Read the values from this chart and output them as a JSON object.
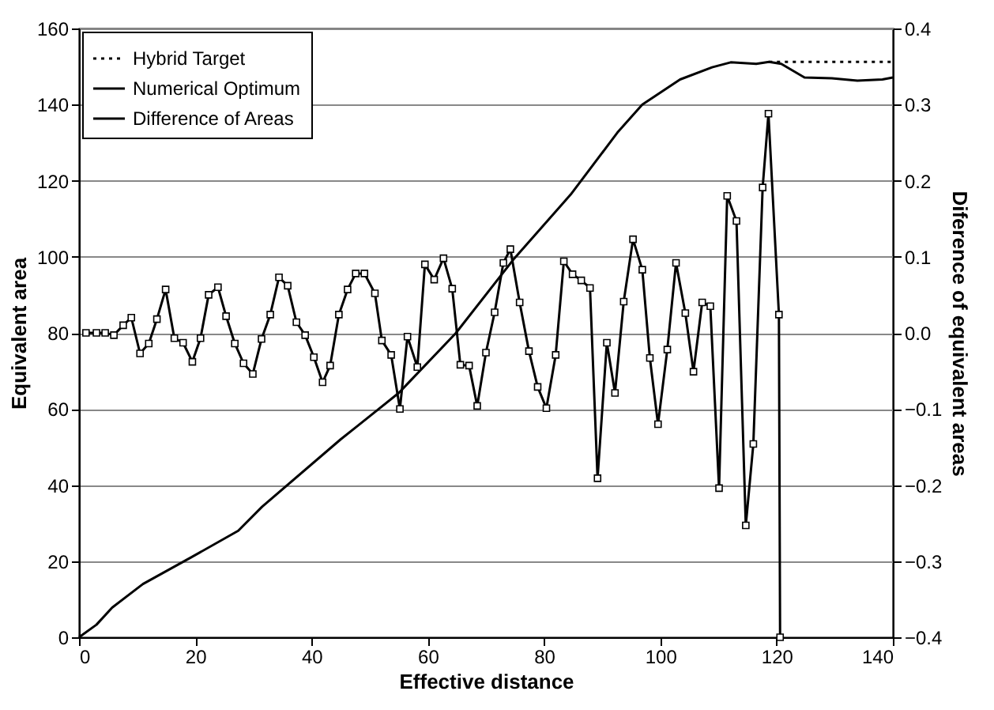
{
  "chart_data": {
    "type": "line",
    "xlabel": "Effective distance",
    "ylabel": "Equivalent area",
    "y2label": "Diference of equivalent areas",
    "xlim": [
      0,
      140
    ],
    "xticks": [
      0,
      20,
      40,
      60,
      80,
      100,
      120,
      140
    ],
    "ylim": [
      0,
      160
    ],
    "yticks": [
      0,
      20,
      40,
      60,
      80,
      100,
      120,
      140,
      160
    ],
    "y2lim": [
      -0.4,
      0.4
    ],
    "y2ticks": [
      -0.4,
      -0.3,
      -0.2,
      -0.1,
      {
        "value": 0,
        "label": "0.0"
      },
      0.1,
      0.2,
      0.3,
      0.4
    ],
    "grid": "y",
    "legend": "top left",
    "series": [
      {
        "name": "Hybrid Target",
        "color": "#000000",
        "line_style": "dotted",
        "marker": "none",
        "x": [
          118.7,
          140
        ],
        "values": [
          151.2,
          151.2
        ]
      },
      {
        "name": "Numerical Optimum",
        "color": "#000000",
        "line_style": "solid",
        "marker": "none",
        "x": [
          0,
          3,
          5.7,
          11,
          19.3,
          27.4,
          31.5,
          45,
          47.8,
          55,
          64.8,
          74.9,
          84.6,
          92.6,
          96.9,
          103.4,
          108.9,
          112.1,
          116.5,
          118.7,
          120.8,
          124.8,
          129.5,
          133.9,
          138.2,
          140
        ],
        "values": [
          0,
          3.3,
          7.8,
          14,
          21,
          28,
          34.3,
          52,
          55.4,
          64.2,
          79.9,
          99.6,
          116.4,
          132.6,
          140,
          146.6,
          149.8,
          151.1,
          150.7,
          151.2,
          150.7,
          147.1,
          146.9,
          146.3,
          146.6,
          147.1
        ]
      },
      {
        "name": "Difference of Areas",
        "color": "#000000",
        "line_style": "solid",
        "marker": "square",
        "axis": "y2",
        "x": [
          1.2,
          3.0,
          4.5,
          6.0,
          7.6,
          9.0,
          10.5,
          12.0,
          13.4,
          14.9,
          16.4,
          17.9,
          19.5,
          20.9,
          22.3,
          23.9,
          25.3,
          26.8,
          28.3,
          29.9,
          31.4,
          32.9,
          34.4,
          35.9,
          37.4,
          38.9,
          40.4,
          41.9,
          43.2,
          44.7,
          46.2,
          47.6,
          49.1,
          50.9,
          52.1,
          53.7,
          55.2,
          56.5,
          58.2,
          59.5,
          61.1,
          62.7,
          64.2,
          65.6,
          67.1,
          68.5,
          70.0,
          71.5,
          73.0,
          74.2,
          75.8,
          77.4,
          78.9,
          80.4,
          82.0,
          83.4,
          84.9,
          86.4,
          87.9,
          89.2,
          90.8,
          92.2,
          93.7,
          95.3,
          96.9,
          98.2,
          99.6,
          101.2,
          102.7,
          104.3,
          105.7,
          107.2,
          108.6,
          110.1,
          111.5,
          113.1,
          114.7,
          116.0,
          117.6,
          118.6,
          120.4,
          120.6
        ],
        "values": [
          0.0,
          0.0,
          0.0,
          -0.003,
          0.01,
          0.02,
          -0.027,
          -0.014,
          0.018,
          0.057,
          -0.007,
          -0.013,
          -0.038,
          -0.007,
          0.05,
          0.06,
          0.022,
          -0.014,
          -0.04,
          -0.054,
          -0.008,
          0.024,
          0.073,
          0.062,
          0.014,
          -0.003,
          -0.032,
          -0.065,
          -0.043,
          0.024,
          0.057,
          0.078,
          0.078,
          0.052,
          -0.01,
          -0.029,
          -0.1,
          -0.005,
          -0.045,
          0.09,
          0.07,
          0.098,
          0.058,
          -0.042,
          -0.043,
          -0.096,
          -0.026,
          0.027,
          0.092,
          0.11,
          0.04,
          -0.024,
          -0.071,
          -0.099,
          -0.029,
          0.094,
          0.077,
          0.069,
          0.059,
          -0.191,
          -0.013,
          -0.079,
          0.041,
          0.123,
          0.083,
          -0.033,
          -0.12,
          -0.022,
          0.092,
          0.026,
          -0.051,
          0.04,
          0.035,
          -0.204,
          0.18,
          0.147,
          -0.253,
          -0.146,
          0.191,
          0.288,
          0.024,
          -0.4
        ]
      }
    ]
  }
}
